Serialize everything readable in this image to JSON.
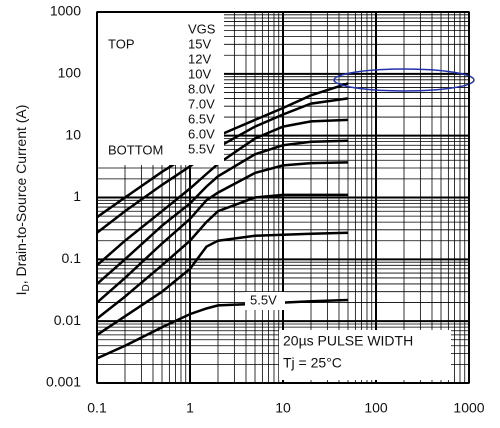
{
  "chart_data": {
    "type": "line",
    "y_label": {
      "main": "I",
      "sub": "D",
      "rest": ", Drain-to-Source Current (A)"
    },
    "x": [
      0.1,
      0.2,
      0.5,
      1,
      1.5,
      2,
      5,
      10,
      20,
      50
    ],
    "series": [
      {
        "name": "15V",
        "color": "#000000",
        "values": [
          0.48,
          1.0,
          2.6,
          5,
          8,
          10,
          18,
          28,
          45,
          70
        ]
      },
      {
        "name": "12V",
        "color": "#000000",
        "values": [
          0.27,
          0.6,
          1.6,
          3.2,
          5,
          6.5,
          14,
          22,
          33,
          40
        ]
      },
      {
        "name": "10V",
        "color": "#000000",
        "values": [
          0.08,
          0.2,
          0.6,
          1.4,
          2.4,
          3.5,
          9,
          14,
          17,
          18
        ]
      },
      {
        "name": "8.0V",
        "color": "#000000",
        "values": [
          0.04,
          0.1,
          0.35,
          0.8,
          1.5,
          2.2,
          5,
          7,
          8,
          8.3
        ]
      },
      {
        "name": "7.0V",
        "color": "#000000",
        "values": [
          0.02,
          0.05,
          0.18,
          0.45,
          0.9,
          1.2,
          2.5,
          3.3,
          3.6,
          3.7
        ]
      },
      {
        "name": "6.5V",
        "color": "#000000",
        "values": [
          0.011,
          0.025,
          0.08,
          0.2,
          0.4,
          0.6,
          1.0,
          1.1,
          1.1,
          1.1
        ]
      },
      {
        "name": "6.0V",
        "color": "#000000",
        "values": [
          0.006,
          0.012,
          0.03,
          0.07,
          0.16,
          0.2,
          0.24,
          0.25,
          0.26,
          0.27
        ]
      },
      {
        "name": "5.5V",
        "color": "#000000",
        "values": [
          0.0025,
          0.004,
          0.008,
          0.013,
          0.016,
          0.018,
          0.019,
          0.02,
          0.021,
          0.022
        ]
      }
    ],
    "legend_title": "VGS",
    "legend_top": "TOP",
    "legend_bottom": "BOTTOM",
    "curve_annotation": "5.5V",
    "notes": [
      "20µs PULSE WIDTH",
      "Tj = 25°C"
    ],
    "xlim": [
      0.1,
      1000
    ],
    "ylim": [
      0.001,
      1000
    ],
    "xticks": [
      0.1,
      1,
      10,
      100,
      1000
    ],
    "yticks": [
      0.001,
      0.01,
      0.1,
      1,
      10,
      100,
      1000
    ],
    "log_x": true,
    "log_y": true,
    "grid": true
  }
}
